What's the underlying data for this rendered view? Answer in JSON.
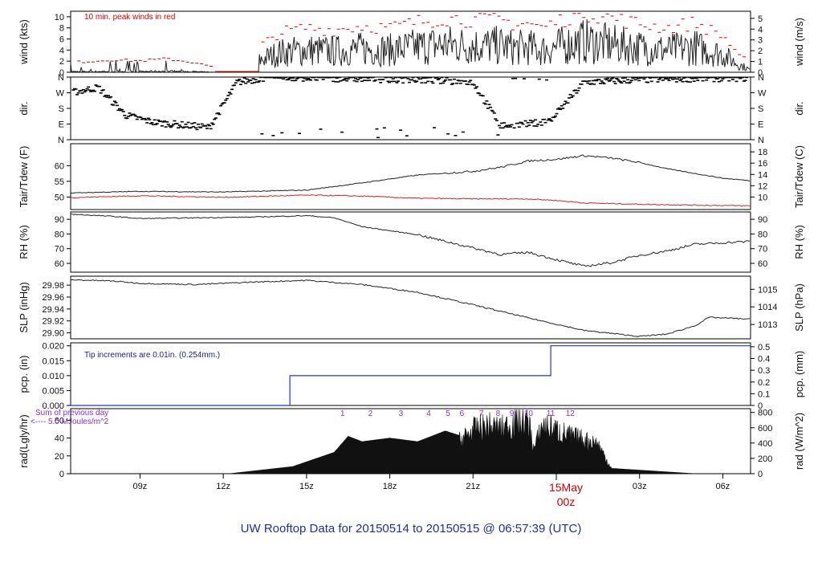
{
  "title": "UW Rooftop Data for 20150514  to  20150515 @ 06:57:39  (UTC)",
  "colors": {
    "frame": "#000000",
    "series": "#222222",
    "peak": "#dd0000",
    "dew": "#e02020",
    "rain": "#2233cc",
    "rad_label": "#8a2be2",
    "note": "#1a1aa0",
    "date": "#cc0000"
  },
  "x_axis": {
    "ticks": [
      "09z",
      "12z",
      "15z",
      "18z",
      "21z",
      "03z",
      "06z"
    ],
    "date_label": "15May",
    "date_time": "00z"
  },
  "panels": {
    "wind": {
      "ylabel_left": "wind (kts)",
      "ylabel_right": "wind (m/s)",
      "ticks_left": [
        "0",
        "2",
        "4",
        "6",
        "8",
        "10"
      ],
      "ticks_right": [
        "0",
        "1",
        "2",
        "3",
        "4",
        "5"
      ],
      "note": "10 min. peak winds in red"
    },
    "dir": {
      "ylabel_left": "dir.",
      "ylabel_right": "dir.",
      "ticks_left": [
        "N",
        "E",
        "S",
        "W",
        "N"
      ],
      "ticks_right": [
        "N",
        "E",
        "S",
        "W",
        "N"
      ]
    },
    "temp": {
      "ylabel_left": "Tair/Tdew (F)",
      "ylabel_right": "Tair/Tdew (C)",
      "ticks_left": [
        "50",
        "55",
        "60"
      ],
      "ticks_right": [
        "10",
        "12",
        "14",
        "16",
        "18"
      ]
    },
    "rh": {
      "ylabel_left": "RH (%)",
      "ylabel_right": "RH (%)",
      "ticks_left": [
        "60",
        "70",
        "80",
        "90"
      ],
      "ticks_right": [
        "60",
        "70",
        "80",
        "90"
      ]
    },
    "slp": {
      "ylabel_left": "SLP (inHg)",
      "ylabel_right": "SLP (hPa)",
      "ticks_left": [
        "29.90",
        "29.92",
        "29.94",
        "29.96",
        "29.98"
      ],
      "ticks_right": [
        "1013",
        "1014",
        "1015"
      ]
    },
    "pcp": {
      "ylabel_left": "pcp. (in)",
      "ylabel_right": "pcp. (mm)",
      "ticks_left": [
        "0.000",
        "0.005",
        "0.010",
        "0.015",
        "0.020"
      ],
      "ticks_right": [
        "0",
        "0.1",
        "0.2",
        "0.3",
        "0.4",
        "0.5"
      ],
      "note": "Tip increments are 0.01in. (0.254mm.)"
    },
    "rad": {
      "ylabel_left": "rad(Lgly/hr)",
      "ylabel_right": "rad (W/m^2)",
      "ticks_left": [
        "0",
        "20",
        "40",
        "60"
      ],
      "ticks_right": [
        "0",
        "200",
        "400",
        "600",
        "800"
      ],
      "note_line1": "Sum of previous day",
      "note_line2": "<---- 5.0 MJoules/m^2",
      "hour_marks": [
        "1",
        "2",
        "3",
        "4",
        "5",
        "6",
        "7",
        "8",
        "9",
        "10",
        "11",
        "12"
      ]
    }
  },
  "chart_data": [
    {
      "type": "line",
      "name": "wind",
      "x_hours": [
        6.5,
        7,
        8,
        9,
        10,
        11,
        11.8,
        12.6,
        13.5,
        14,
        15,
        16,
        17,
        18,
        19,
        20,
        21,
        22,
        22.5,
        23,
        23.5,
        24,
        25,
        26,
        27,
        28,
        29,
        30,
        30.5,
        31
      ],
      "y": [
        0.6,
        0.6,
        0.8,
        0.7,
        0.9,
        0.5,
        0.0,
        0.6,
        2.5,
        3.5,
        4.0,
        3.8,
        4.2,
        4.0,
        4.6,
        5.0,
        4.8,
        4.8,
        4.4,
        4.5,
        4.0,
        4.6,
        5.6,
        5.0,
        4.4,
        4.0,
        4.5,
        3.2,
        1.6,
        0.4
      ],
      "ylim": [
        0,
        11
      ],
      "xlim": [
        6.5,
        31
      ]
    },
    {
      "type": "line",
      "name": "wind direction (deg)",
      "x_hours": [
        6.5,
        7.5,
        8.5,
        9.5,
        10.5,
        11.5,
        12.5,
        13.5,
        15,
        17,
        19,
        21,
        22,
        23,
        23.8,
        25,
        27,
        29,
        31
      ],
      "y": [
        270,
        300,
        140,
        100,
        85,
        70,
        330,
        355,
        355,
        350,
        345,
        330,
        80,
        90,
        110,
        330,
        345,
        352,
        355
      ],
      "ylim": [
        0,
        360
      ],
      "xlim": [
        6.5,
        31
      ]
    },
    {
      "type": "line",
      "name": "Tair (F)",
      "x_hours": [
        6.5,
        9,
        12,
        15,
        17,
        19,
        21,
        22,
        23,
        24,
        25,
        26,
        27,
        28,
        29,
        30,
        31
      ],
      "y": [
        51.3,
        51.8,
        51.6,
        52.2,
        54.5,
        57.0,
        58.2,
        59.5,
        61.5,
        62.0,
        63.2,
        62.4,
        61.0,
        59.0,
        57.5,
        56.0,
        55.2
      ],
      "ylim": [
        46,
        67
      ],
      "xlim": [
        6.5,
        31
      ]
    },
    {
      "type": "line",
      "name": "Tdew (F)",
      "x_hours": [
        6.5,
        9,
        12,
        15,
        17,
        19,
        21,
        23,
        24,
        25,
        26,
        27,
        29,
        31
      ],
      "y": [
        49.8,
        50.4,
        49.9,
        50.6,
        50.3,
        49.6,
        49.4,
        49.4,
        48.9,
        48.1,
        47.9,
        47.7,
        47.4,
        47.2
      ],
      "ylim": [
        46,
        67
      ],
      "xlim": [
        6.5,
        31
      ]
    },
    {
      "type": "line",
      "name": "RH (%)",
      "x_hours": [
        6.5,
        8,
        9,
        11,
        13,
        15,
        16,
        17,
        19,
        21,
        22,
        23,
        24,
        25,
        26,
        27,
        28,
        29,
        31
      ],
      "y": [
        93.5,
        92,
        90.5,
        91,
        91.5,
        92.5,
        91,
        85,
        79.5,
        70.5,
        66,
        67.5,
        62.5,
        58,
        60.5,
        65.5,
        68.5,
        73,
        75
      ],
      "ylim": [
        54,
        95
      ],
      "xlim": [
        6.5,
        31
      ]
    },
    {
      "type": "line",
      "name": "SLP (inHg)",
      "x_hours": [
        6.5,
        8,
        9,
        11,
        13,
        15,
        17,
        19,
        21,
        23,
        25,
        27,
        28,
        29,
        29.5,
        31
      ],
      "y": [
        29.989,
        29.987,
        29.983,
        29.981,
        29.985,
        29.988,
        29.981,
        29.968,
        29.947,
        29.925,
        29.904,
        29.894,
        29.898,
        29.912,
        29.926,
        29.923
      ],
      "ylim": [
        29.89,
        29.995
      ],
      "xlim": [
        6.5,
        31
      ]
    },
    {
      "type": "line",
      "name": "pcp (in)",
      "x_hours": [
        6.5,
        14.4,
        14.4,
        23.8,
        23.8,
        31
      ],
      "y": [
        0.0,
        0.0,
        0.01,
        0.01,
        0.02,
        0.02
      ],
      "ylim": [
        0,
        0.021
      ],
      "xlim": [
        6.5,
        31
      ]
    },
    {
      "type": "area",
      "name": "rad (Lgly/hr)",
      "x_hours": [
        12.2,
        14.5,
        16,
        16.5,
        17,
        17.5,
        18,
        19,
        20,
        20.5,
        21,
        21.5,
        22,
        22.5,
        23,
        23.2,
        23.5,
        24.5,
        25.5,
        26,
        27,
        28,
        29
      ],
      "y": [
        0,
        8,
        24,
        42,
        36,
        38,
        40,
        36,
        48,
        43,
        58,
        64,
        60,
        68,
        70,
        32,
        66,
        50,
        40,
        6,
        4,
        2,
        0
      ],
      "ylim": [
        0,
        73
      ],
      "xlim": [
        6.5,
        31
      ]
    }
  ]
}
